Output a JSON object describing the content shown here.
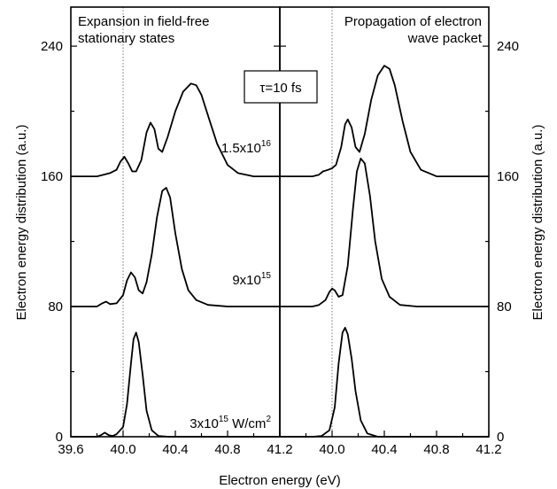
{
  "chart_data": {
    "type": "line",
    "xlabel": "Electron energy (eV)",
    "ylabel_left": "Electron energy distribution (a.u.)",
    "ylabel_right": "Electron energy distribution (a.u.)",
    "inset_label": "τ=10 fs",
    "reference_line_x": 40.0,
    "grid": false,
    "panels": [
      {
        "title_line1": "Expansion in field-free",
        "title_line2": "stationary states",
        "xlim": [
          39.6,
          41.2
        ],
        "ylim": [
          0,
          264
        ],
        "xticks": [
          "39.6",
          "40.0",
          "40.4",
          "40.8",
          "41.2"
        ],
        "yticks": [
          "0",
          "80",
          "160",
          "240"
        ],
        "series": [
          {
            "offset": 0,
            "points": [
              [
                39.6,
                0
              ],
              [
                39.8,
                0
              ],
              [
                39.83,
                1
              ],
              [
                39.86,
                2.5
              ],
              [
                39.89,
                1
              ],
              [
                39.92,
                0.5
              ],
              [
                39.95,
                1.5
              ],
              [
                40.0,
                6
              ],
              [
                40.03,
                20
              ],
              [
                40.06,
                45
              ],
              [
                40.08,
                60
              ],
              [
                40.1,
                64
              ],
              [
                40.12,
                58
              ],
              [
                40.15,
                38
              ],
              [
                40.18,
                16
              ],
              [
                40.22,
                4
              ],
              [
                40.27,
                0.5
              ],
              [
                40.35,
                0
              ],
              [
                41.2,
                0
              ]
            ]
          },
          {
            "offset": 80,
            "points": [
              [
                39.6,
                80
              ],
              [
                39.8,
                80
              ],
              [
                39.84,
                82
              ],
              [
                39.87,
                83
              ],
              [
                39.9,
                81.5
              ],
              [
                39.95,
                82
              ],
              [
                40.0,
                87
              ],
              [
                40.03,
                96
              ],
              [
                40.06,
                101
              ],
              [
                40.09,
                98
              ],
              [
                40.12,
                90
              ],
              [
                40.15,
                88
              ],
              [
                40.18,
                95
              ],
              [
                40.22,
                112
              ],
              [
                40.26,
                135
              ],
              [
                40.3,
                151
              ],
              [
                40.33,
                153
              ],
              [
                40.36,
                147
              ],
              [
                40.4,
                125
              ],
              [
                40.45,
                103
              ],
              [
                40.5,
                90
              ],
              [
                40.56,
                84
              ],
              [
                40.65,
                81
              ],
              [
                40.8,
                80
              ],
              [
                41.2,
                80
              ]
            ]
          },
          {
            "offset": 160,
            "points": [
              [
                39.6,
                160
              ],
              [
                39.8,
                160
              ],
              [
                39.85,
                161
              ],
              [
                39.9,
                162
              ],
              [
                39.95,
                164
              ],
              [
                39.98,
                169
              ],
              [
                40.01,
                172
              ],
              [
                40.04,
                168
              ],
              [
                40.07,
                163
              ],
              [
                40.1,
                163
              ],
              [
                40.14,
                170
              ],
              [
                40.18,
                187
              ],
              [
                40.21,
                193
              ],
              [
                40.24,
                189
              ],
              [
                40.27,
                177
              ],
              [
                40.3,
                175
              ],
              [
                40.34,
                184
              ],
              [
                40.4,
                200
              ],
              [
                40.46,
                212
              ],
              [
                40.52,
                217
              ],
              [
                40.56,
                216
              ],
              [
                40.6,
                210
              ],
              [
                40.66,
                195
              ],
              [
                40.72,
                180
              ],
              [
                40.8,
                167
              ],
              [
                40.88,
                162
              ],
              [
                41.0,
                160
              ],
              [
                41.2,
                160
              ]
            ]
          }
        ],
        "annotations": [
          {
            "base": "3x10",
            "sup": "15",
            "unit": " W/cm",
            "unit_sup": "2"
          },
          {
            "base": "9x10",
            "sup": "15",
            "unit": "",
            "unit_sup": ""
          },
          {
            "base": "1.5x10",
            "sup": "16",
            "unit": "",
            "unit_sup": ""
          }
        ]
      },
      {
        "title_line1": "Propagation of electron",
        "title_line2": "wave packet",
        "xlim": [
          39.6,
          41.2
        ],
        "ylim": [
          0,
          264
        ],
        "xticks": [
          "39.6",
          "40.0",
          "40.4",
          "40.8",
          "41.2"
        ],
        "yticks": [
          "0",
          "80",
          "160",
          "240"
        ],
        "series": [
          {
            "offset": 0,
            "points": [
              [
                39.6,
                0
              ],
              [
                39.85,
                0
              ],
              [
                39.92,
                0.5
              ],
              [
                39.98,
                4
              ],
              [
                40.02,
                18
              ],
              [
                40.05,
                45
              ],
              [
                40.08,
                64
              ],
              [
                40.1,
                67
              ],
              [
                40.12,
                63
              ],
              [
                40.15,
                48
              ],
              [
                40.18,
                28
              ],
              [
                40.22,
                10
              ],
              [
                40.27,
                2
              ],
              [
                40.35,
                0
              ],
              [
                41.2,
                0
              ]
            ]
          },
          {
            "offset": 80,
            "points": [
              [
                39.6,
                80
              ],
              [
                39.85,
                80
              ],
              [
                39.9,
                81
              ],
              [
                39.95,
                84
              ],
              [
                39.98,
                89
              ],
              [
                40.0,
                91
              ],
              [
                40.02,
                90
              ],
              [
                40.05,
                86
              ],
              [
                40.08,
                87
              ],
              [
                40.12,
                105
              ],
              [
                40.16,
                140
              ],
              [
                40.19,
                163
              ],
              [
                40.22,
                171
              ],
              [
                40.25,
                168
              ],
              [
                40.29,
                148
              ],
              [
                40.33,
                120
              ],
              [
                40.38,
                97
              ],
              [
                40.44,
                86
              ],
              [
                40.52,
                81
              ],
              [
                40.65,
                80
              ],
              [
                41.2,
                80
              ]
            ]
          },
          {
            "offset": 160,
            "points": [
              [
                39.6,
                160
              ],
              [
                39.85,
                160
              ],
              [
                39.9,
                161
              ],
              [
                39.93,
                163
              ],
              [
                39.97,
                164
              ],
              [
                40.0,
                165
              ],
              [
                40.03,
                167
              ],
              [
                40.07,
                178
              ],
              [
                40.1,
                192
              ],
              [
                40.12,
                195
              ],
              [
                40.15,
                190
              ],
              [
                40.18,
                178
              ],
              [
                40.21,
                175
              ],
              [
                40.25,
                186
              ],
              [
                40.3,
                207
              ],
              [
                40.35,
                222
              ],
              [
                40.4,
                228
              ],
              [
                40.44,
                226
              ],
              [
                40.48,
                216
              ],
              [
                40.54,
                194
              ],
              [
                40.6,
                175
              ],
              [
                40.68,
                164
              ],
              [
                40.8,
                160
              ],
              [
                41.2,
                160
              ]
            ]
          }
        ],
        "annotations": []
      }
    ]
  }
}
